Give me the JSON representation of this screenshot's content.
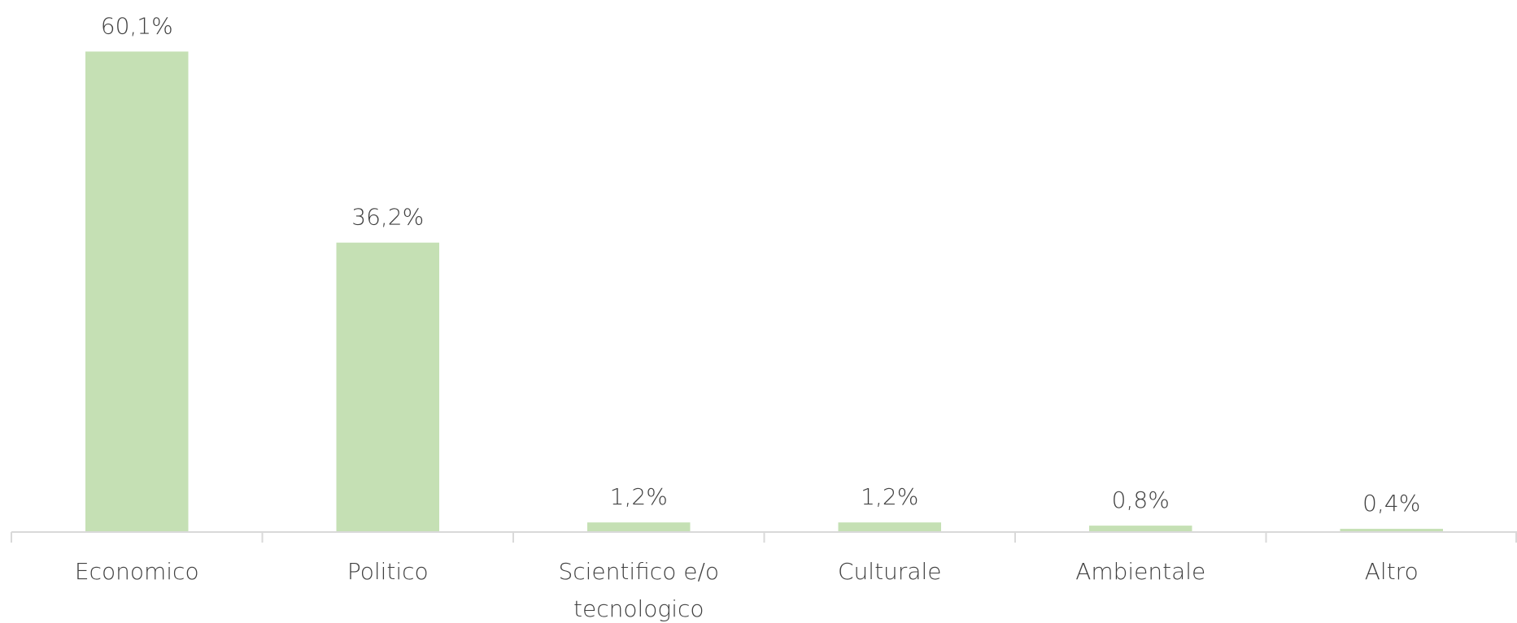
{
  "chart_data": {
    "type": "bar",
    "categories": [
      "Economico",
      "Politico",
      "Scientifico e/o tecnologico",
      "Culturale",
      "Ambientale",
      "Altro"
    ],
    "values": [
      60.1,
      36.2,
      1.2,
      1.2,
      0.8,
      0.4
    ],
    "value_labels": [
      "60,1%",
      "36,2%",
      "1,2%",
      "1,2%",
      "0,8%",
      "0,4%"
    ],
    "color": "#c5e0b4",
    "ylim": [
      0,
      70
    ]
  }
}
